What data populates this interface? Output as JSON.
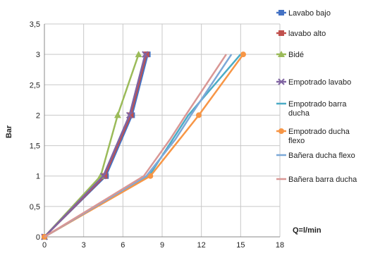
{
  "chart_data": {
    "type": "line",
    "xlabel": "Q=l/min",
    "ylabel": "Bar",
    "xlim": [
      0,
      18
    ],
    "ylim": [
      0,
      3.5
    ],
    "x_ticks": [
      "0",
      "3",
      "6",
      "9",
      "12",
      "15",
      "18"
    ],
    "y_ticks": [
      "0",
      "0,5",
      "1",
      "1,5",
      "2",
      "2,5",
      "3",
      "3,5"
    ],
    "grid": true,
    "legend_position": "right",
    "series": [
      {
        "name": "Lavabo bajo",
        "color": "#4472C4",
        "marker": "square",
        "x": [
          0,
          4.7,
          6.7,
          7.9
        ],
        "y": [
          0,
          1,
          2,
          3
        ]
      },
      {
        "name": "lavabo alto",
        "color": "#C0504D",
        "marker": "square",
        "x": [
          0,
          4.6,
          6.6,
          7.8
        ],
        "y": [
          0,
          1,
          2,
          3
        ]
      },
      {
        "name": "Bidé",
        "color": "#9BBB59",
        "marker": "triangle",
        "x": [
          0,
          4.3,
          5.6,
          7.2
        ],
        "y": [
          0,
          1,
          2,
          3
        ]
      },
      {
        "name": "Empotrado lavabo",
        "color": "#8064A2",
        "marker": "cross",
        "x": [
          0,
          4.5,
          6.5,
          7.7
        ],
        "y": [
          0,
          1,
          2,
          3
        ]
      },
      {
        "name": "Empotrado barra ducha",
        "color": "#4BACC6",
        "marker": "none",
        "x": [
          0,
          8.0,
          11.0,
          15.0
        ],
        "y": [
          0,
          1,
          2,
          3
        ]
      },
      {
        "name": "Empotrado ducha flexo",
        "color": "#F79646",
        "marker": "circle",
        "x": [
          0,
          8.1,
          11.8,
          15.2
        ],
        "y": [
          0,
          1,
          2,
          3
        ]
      },
      {
        "name": "Bañera ducha flexo",
        "color": "#7CA8D8",
        "marker": "none",
        "x": [
          0,
          7.8,
          10.0,
          11.2,
          14.3
        ],
        "y": [
          0,
          1,
          1.6,
          2.0,
          3
        ]
      },
      {
        "name": "Bañera barra ducha",
        "color": "#D99795",
        "marker": "none",
        "x": [
          0,
          7.6,
          9.6,
          10.8,
          13.9
        ],
        "y": [
          0,
          1,
          1.6,
          2.0,
          3
        ]
      }
    ]
  }
}
